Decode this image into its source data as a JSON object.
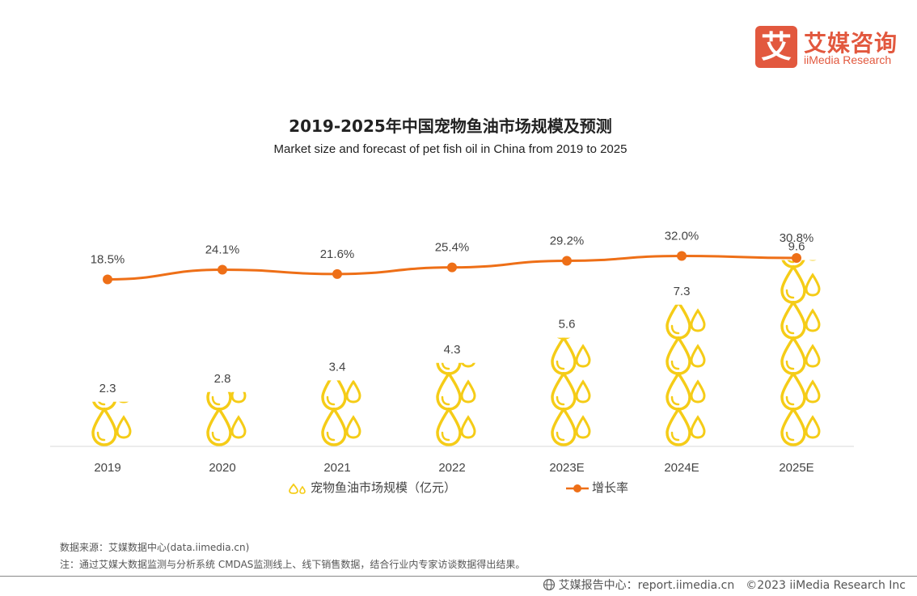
{
  "logo": {
    "glyph": "艾",
    "cn": "艾媒咨询",
    "en": "iiMedia Research"
  },
  "header": {
    "title": "2019-2025年中国宠物鱼油市场规模及预测",
    "subtitle": "Market size and forecast of pet fish oil in China from 2019 to 2025"
  },
  "chart_data": {
    "type": "bar",
    "categories": [
      "2019",
      "2020",
      "2021",
      "2022",
      "2023E",
      "2024E",
      "2025E"
    ],
    "series": [
      {
        "name": "宠物鱼油市场规模（亿元）",
        "kind": "pictorial-bar",
        "values": [
          2.3,
          2.8,
          3.4,
          4.3,
          5.6,
          7.3,
          9.6
        ],
        "labels": [
          "2.3",
          "2.8",
          "3.4",
          "4.3",
          "5.6",
          "7.3",
          "9.6"
        ],
        "color": "#f5cc17"
      },
      {
        "name": "增长率",
        "kind": "line",
        "values": [
          18.5,
          24.1,
          21.6,
          25.4,
          29.2,
          32.0,
          30.8
        ],
        "labels": [
          "18.5%",
          "24.1%",
          "21.6%",
          "25.4%",
          "29.2%",
          "32.0%",
          "30.8%"
        ],
        "color": "#ee6f17"
      }
    ],
    "grid": false,
    "legend_position": "bottom"
  },
  "legend": {
    "bar_label": "宠物鱼油市场规模（亿元）",
    "line_label": "增长率"
  },
  "notes": {
    "source": "数据来源：艾媒数据中心(data.iimedia.cn)",
    "note": "注：通过艾媒大数据监测与分析系统 CMDAS监测线上、线下销售数据，结合行业内专家访谈数据得出结果。"
  },
  "footer": {
    "site": "艾媒报告中心：report.iimedia.cn",
    "copyright": "©2023  iiMedia Research Inc"
  }
}
